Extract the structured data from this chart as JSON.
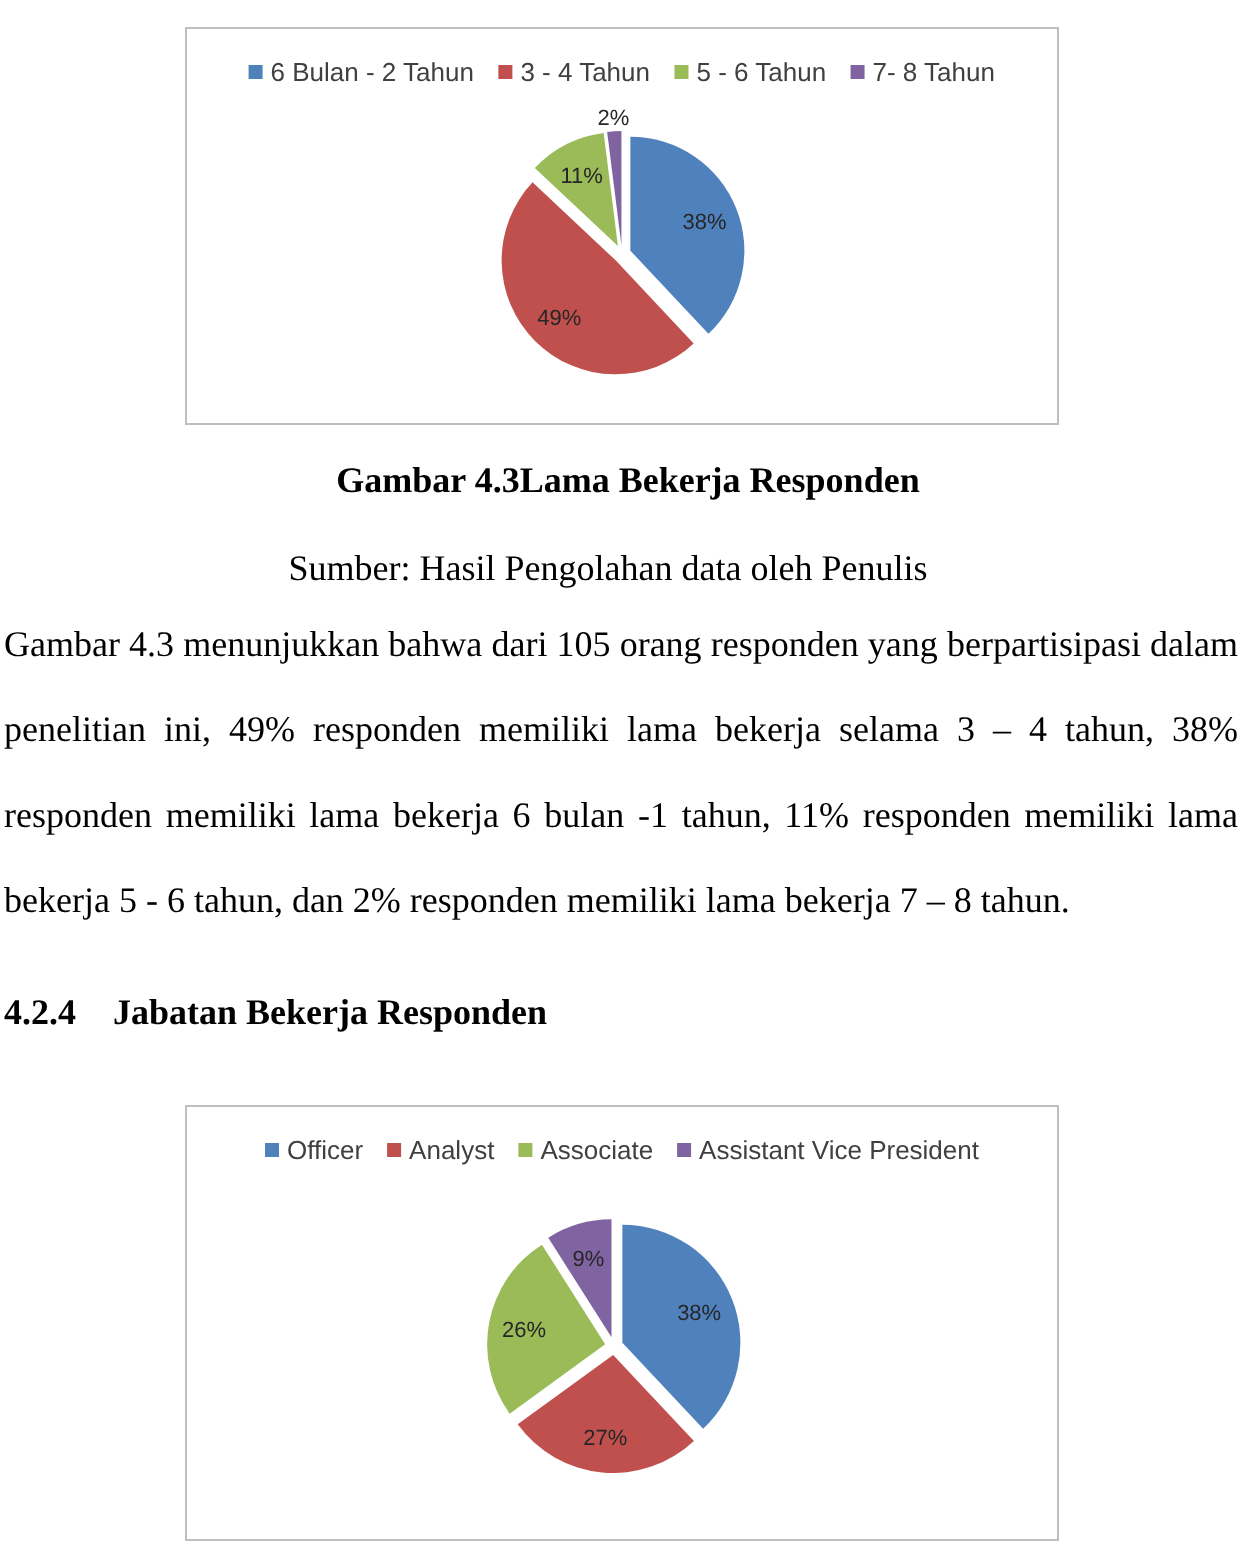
{
  "chart_data": [
    {
      "type": "pie",
      "title": "Gambar 4.3Lama Bekerja Responden",
      "categories": [
        "6 Bulan - 2 Tahun",
        "3 - 4 Tahun",
        "5 - 6 Tahun",
        "7- 8 Tahun"
      ],
      "values": [
        38,
        49,
        11,
        2
      ],
      "colors": [
        "#4f81bd",
        "#c0504d",
        "#9bbb59",
        "#8064a2"
      ],
      "value_labels": [
        "38%",
        "49%",
        "11%",
        "2%"
      ],
      "legend": "top",
      "annotations": [
        "Sumber: Hasil Pengolahan data oleh Penulis",
        "Gambar 4.3 menunjukkan bahwa dari 105 orang responden yang berpartisipasi dalam penelitian ini, 49% responden memiliki lama bekerja selama 3 – 4 tahun, 38% responden memiliki lama bekerja 6 bulan -1 tahun, 11% responden memiliki lama bekerja 5 - 6 tahun, dan 2% responden memiliki lama bekerja 7 – 8 tahun."
      ]
    },
    {
      "type": "pie",
      "title": "4.2.4 Jabatan Bekerja Responden",
      "categories": [
        "Officer",
        "Analyst",
        "Associate",
        "Assistant Vice President"
      ],
      "values": [
        38,
        27,
        26,
        9
      ],
      "colors": [
        "#4f81bd",
        "#c0504d",
        "#9bbb59",
        "#8064a2"
      ],
      "value_labels": [
        "38%",
        "27%",
        "26%",
        "9%"
      ],
      "legend": "top"
    }
  ]
}
